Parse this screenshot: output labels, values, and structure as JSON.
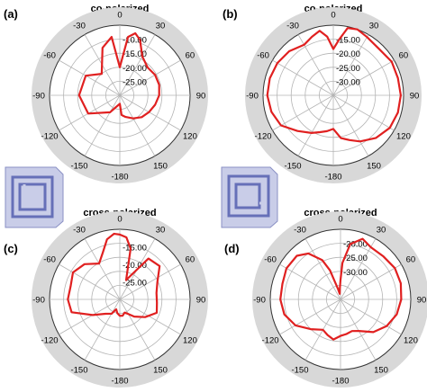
{
  "figure": {
    "accent_color": "#e02020",
    "grid_color": "#b4b4b4",
    "icon_fill": "#c9cde8",
    "icon_stroke": "#6670b8"
  },
  "chart_data": [
    {
      "type": "polar-line",
      "panel_label": "(a)",
      "title": "co-polarized",
      "angle_ticks": [
        "0",
        "30",
        "60",
        "90",
        "120",
        "150",
        "-180",
        "-150",
        "-120",
        "-90",
        "-60",
        "-30"
      ],
      "radial_ticks": [
        "-10.00",
        "-15.00",
        "-20.00",
        "-25.00"
      ],
      "series": [
        {
          "theta_deg": [
            -180,
            -150,
            -120,
            -90,
            -60,
            -40,
            -20,
            -8,
            0,
            8,
            14,
            20,
            30,
            45,
            60,
            75,
            90,
            105,
            120,
            135,
            150,
            165,
            170,
            175,
            180
          ],
          "r_db": [
            -27,
            -23,
            -17,
            -15.5,
            -16,
            -20,
            -12,
            -9,
            -20,
            -9,
            -7.2,
            -9,
            -14,
            -16,
            -15.5,
            -15.5,
            -16,
            -17,
            -18,
            -19,
            -20.5,
            -22,
            -22.5,
            -23,
            -27
          ]
        }
      ]
    },
    {
      "type": "polar-line",
      "panel_label": "(b)",
      "title": "co-polarized",
      "angle_ticks": [
        "0",
        "30",
        "60",
        "90",
        "120",
        "150",
        "-180",
        "-150",
        "-120",
        "-90",
        "-60",
        "-30"
      ],
      "radial_ticks": [
        "-15.00",
        "-20.00",
        "-25.00",
        "-30.00"
      ],
      "series": [
        {
          "theta_deg": [
            -180,
            -170,
            -160,
            -150,
            -135,
            -120,
            -105,
            -90,
            -75,
            -60,
            -45,
            -30,
            -20,
            -12,
            -6,
            0,
            6,
            12,
            20,
            30,
            45,
            60,
            75,
            90,
            105,
            120,
            135,
            150,
            160,
            170,
            180
          ],
          "r_db": [
            -23,
            -22,
            -21,
            -19.5,
            -17,
            -13.5,
            -12.2,
            -11.5,
            -11.6,
            -12,
            -12.8,
            -14.2,
            -12.8,
            -11.5,
            -14,
            -18.5,
            -15,
            -10.5,
            -9.5,
            -11,
            -11.8,
            -11,
            -11.2,
            -11,
            -11.2,
            -11.8,
            -13.5,
            -16,
            -18,
            -19.5,
            -23
          ]
        }
      ]
    },
    {
      "type": "polar-line",
      "panel_label": "(c)",
      "title": "cross-polarized",
      "angle_ticks": [
        "0",
        "30",
        "60",
        "90",
        "120",
        "150",
        "-180",
        "-150",
        "-120",
        "-90",
        "-60",
        "-30"
      ],
      "radial_ticks": [
        "-15.00",
        "-20.00",
        "-25.00"
      ],
      "series": [
        {
          "theta_deg": [
            -180,
            -170,
            -160,
            -150,
            -135,
            -120,
            -105,
            -90,
            -75,
            -60,
            -45,
            -30,
            -20,
            -12,
            -5,
            0,
            6,
            12,
            18,
            25,
            35,
            50,
            65,
            80,
            95,
            110,
            125,
            140,
            150,
            160,
            170,
            180
          ],
          "r_db": [
            -25.3,
            -26,
            -27,
            -25.3,
            -24.2,
            -21.1,
            -15.8,
            -15.2,
            -15.5,
            -14.6,
            -15.8,
            -18.2,
            -15.8,
            -12.5,
            -11.2,
            -11.5,
            -12.2,
            -15.2,
            -24.2,
            -22.4,
            -15.8,
            -15.2,
            -18.2,
            -19.4,
            -19.4,
            -18.8,
            -21.2,
            -23.6,
            -25.2,
            -26,
            -25.3,
            -25.3
          ]
        }
      ]
    },
    {
      "type": "polar-line",
      "panel_label": "(d)",
      "title": "cross-polarized",
      "angle_ticks": [
        "0",
        "30",
        "60",
        "90",
        "120",
        "150",
        "-180",
        "-150",
        "-120",
        "-90",
        "-60",
        "-30"
      ],
      "radial_ticks": [
        "-20.00",
        "-25.00",
        "-30.00"
      ],
      "series": [
        {
          "theta_deg": [
            -180,
            -170,
            -160,
            -150,
            -135,
            -120,
            -105,
            -90,
            -75,
            -60,
            -45,
            -35,
            -25,
            -20,
            -14,
            -8,
            -3,
            0,
            3,
            10,
            20,
            30,
            45,
            60,
            75,
            90,
            105,
            120,
            135,
            150,
            160,
            170,
            180
          ],
          "r_db": [
            -27,
            -25.5,
            -26.5,
            -27.5,
            -25,
            -21.5,
            -19.3,
            -18.6,
            -18.6,
            -17.8,
            -18,
            -20,
            -24.5,
            -29,
            -36,
            -38,
            -36,
            -33,
            -27,
            -20,
            -17,
            -18.5,
            -18.4,
            -17.7,
            -17.8,
            -18.4,
            -19.3,
            -21,
            -23.5,
            -27,
            -28,
            -27.5,
            -27
          ]
        }
      ]
    }
  ]
}
